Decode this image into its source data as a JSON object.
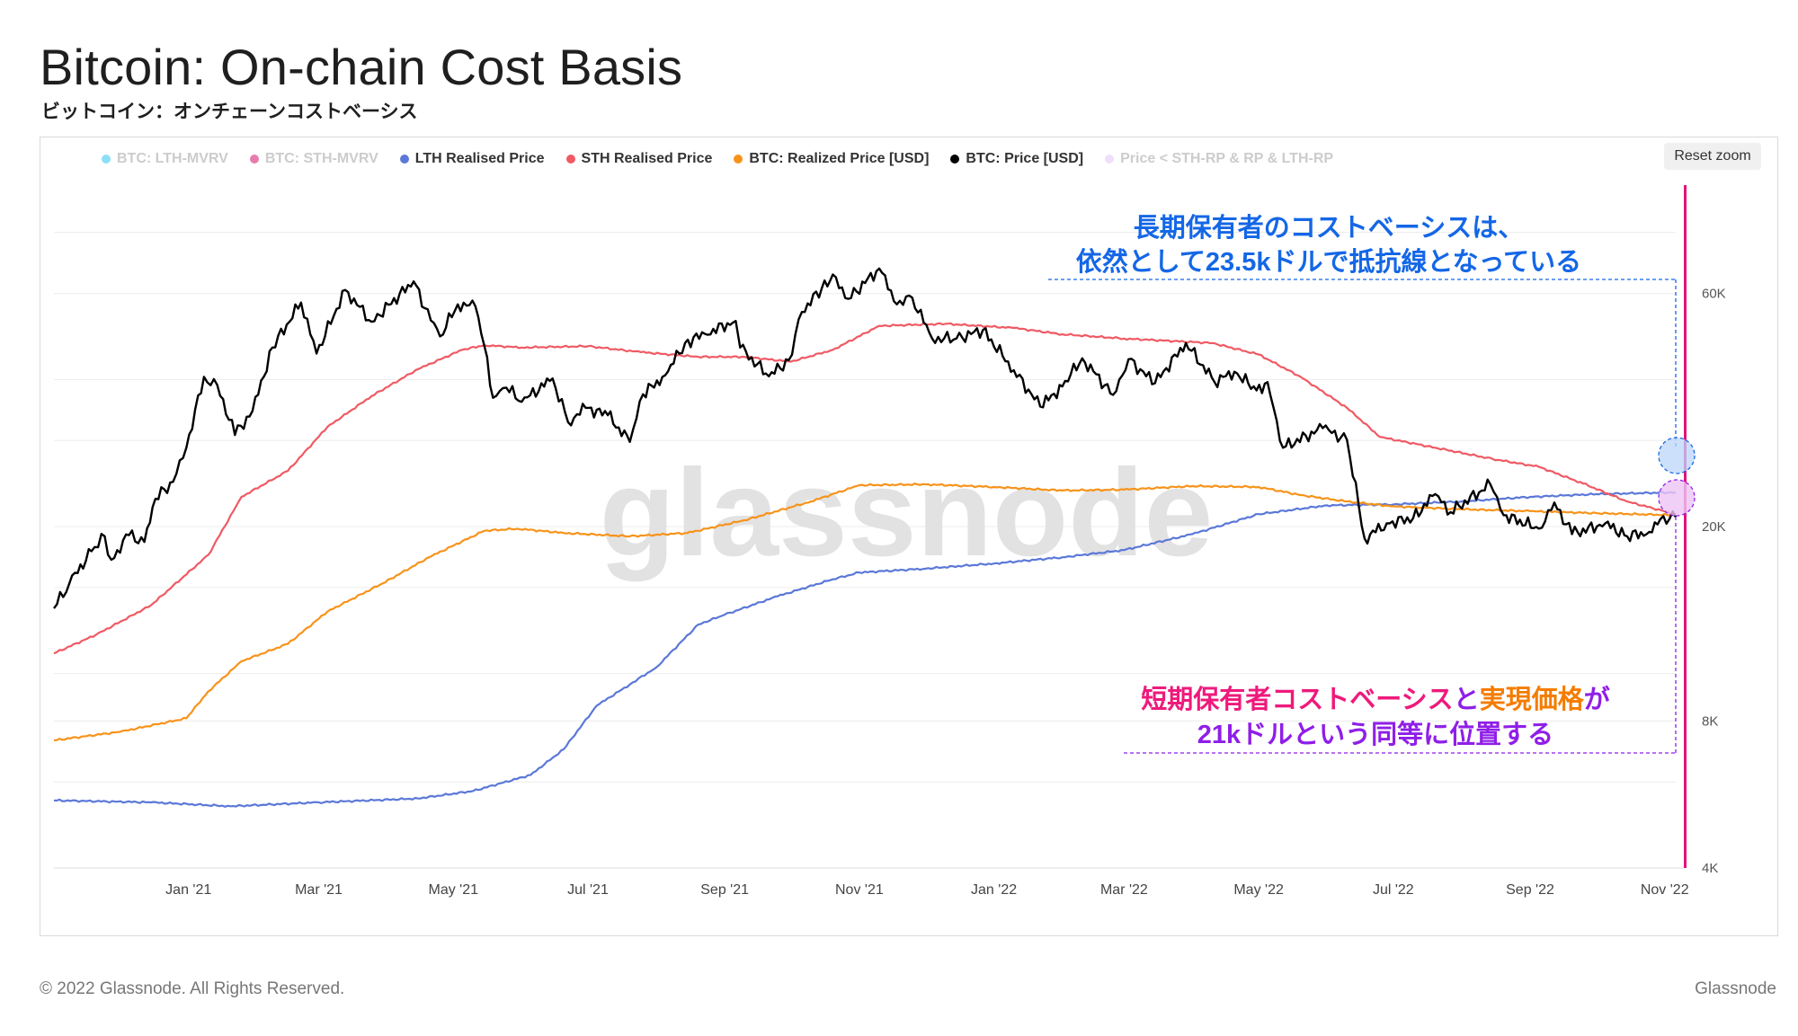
{
  "header": {
    "title": "Bitcoin: On-chain Cost Basis",
    "subtitle": "ビットコイン：オンチェーンコストベーシス"
  },
  "legend": {
    "items": [
      {
        "label": "BTC: LTH-MVRV",
        "color": "#2ec4f2",
        "active": false
      },
      {
        "label": "BTC: STH-MVRV",
        "color": "#d6116a",
        "active": false
      },
      {
        "label": "LTH Realised Price",
        "color": "#5b78d8",
        "active": true
      },
      {
        "label": "STH Realised Price",
        "color": "#ef5a64",
        "active": true
      },
      {
        "label": "BTC: Realized Price [USD]",
        "color": "#f7931a",
        "active": true
      },
      {
        "label": "BTC: Price [USD]",
        "color": "#000000",
        "active": true
      },
      {
        "label": "Price < STH-RP & RP & LTH-RP",
        "color": "#e3c4f7",
        "active": false
      }
    ]
  },
  "toolbar": {
    "reset_label": "Reset zoom"
  },
  "watermark": "glassnode",
  "annotations": {
    "top_line1": "長期保有者のコストベーシスは、",
    "top_line2": "依然として23.5kドルで抵抗線となっている",
    "bottom_line1_a": "短期保有者コストベーシス",
    "bottom_line1_b": "と",
    "bottom_line1_c": "実現価格",
    "bottom_line1_d": "が",
    "bottom_line2": "21kドルという同等に位置する",
    "colors": {
      "top": "#1467e6",
      "pink": "#ee1a7c",
      "orange": "#f57c00",
      "purple": "#8f1ee8"
    }
  },
  "footer": {
    "copyright": "© 2022 Glassnode. All Rights Reserved.",
    "brand": "Glassnode"
  },
  "chart_data": {
    "type": "line",
    "xlabel": "",
    "ylabel": "",
    "y_scale": "log",
    "ylim": [
      4000,
      100000
    ],
    "y_ticks": [
      {
        "value": 4000,
        "label": "4K"
      },
      {
        "value": 8000,
        "label": "8K"
      },
      {
        "value": 20000,
        "label": "20K"
      },
      {
        "value": 60000,
        "label": "60K"
      }
    ],
    "x_range": [
      "2020-11-01",
      "2022-11-06"
    ],
    "x_ticks": [
      {
        "date": "2021-01-01",
        "label": "Jan '21"
      },
      {
        "date": "2021-03-01",
        "label": "Mar '21"
      },
      {
        "date": "2021-05-01",
        "label": "May '21"
      },
      {
        "date": "2021-07-01",
        "label": "Jul '21"
      },
      {
        "date": "2021-09-01",
        "label": "Sep '21"
      },
      {
        "date": "2021-11-01",
        "label": "Nov '21"
      },
      {
        "date": "2022-01-01",
        "label": "Jan '22"
      },
      {
        "date": "2022-03-01",
        "label": "Mar '22"
      },
      {
        "date": "2022-05-01",
        "label": "May '22"
      },
      {
        "date": "2022-07-01",
        "label": "Jul '22"
      },
      {
        "date": "2022-09-01",
        "label": "Sep '22"
      },
      {
        "date": "2022-11-01",
        "label": "Nov '22"
      }
    ],
    "series": [
      {
        "name": "LTH Realised Price",
        "color": "#5b78d8",
        "width": 2.2,
        "points": [
          [
            "2020-11-01",
            5500
          ],
          [
            "2020-12-15",
            5450
          ],
          [
            "2021-01-20",
            5350
          ],
          [
            "2021-03-01",
            5450
          ],
          [
            "2021-04-15",
            5550
          ],
          [
            "2021-05-10",
            5750
          ],
          [
            "2021-06-05",
            6200
          ],
          [
            "2021-06-20",
            7000
          ],
          [
            "2021-07-05",
            8600
          ],
          [
            "2021-07-20",
            9500
          ],
          [
            "2021-08-01",
            10300
          ],
          [
            "2021-08-20",
            12600
          ],
          [
            "2021-09-01",
            13200
          ],
          [
            "2021-09-25",
            14400
          ],
          [
            "2021-10-20",
            15600
          ],
          [
            "2021-11-01",
            16100
          ],
          [
            "2021-12-01",
            16400
          ],
          [
            "2022-01-01",
            16800
          ],
          [
            "2022-02-01",
            17300
          ],
          [
            "2022-03-01",
            17900
          ],
          [
            "2022-04-01",
            19300
          ],
          [
            "2022-05-01",
            21200
          ],
          [
            "2022-06-01",
            22100
          ],
          [
            "2022-07-01",
            22200
          ],
          [
            "2022-08-01",
            22500
          ],
          [
            "2022-09-01",
            23000
          ],
          [
            "2022-10-01",
            23300
          ],
          [
            "2022-11-06",
            23500
          ]
        ]
      },
      {
        "name": "STH Realised Price",
        "color": "#ef5a64",
        "width": 2.2,
        "points": [
          [
            "2020-11-01",
            11000
          ],
          [
            "2020-11-20",
            12000
          ],
          [
            "2020-12-15",
            13800
          ],
          [
            "2021-01-10",
            17500
          ],
          [
            "2021-01-25",
            23000
          ],
          [
            "2021-02-15",
            26000
          ],
          [
            "2021-03-05",
            32000
          ],
          [
            "2021-03-25",
            37000
          ],
          [
            "2021-04-15",
            42000
          ],
          [
            "2021-05-05",
            46000
          ],
          [
            "2021-05-15",
            47000
          ],
          [
            "2021-06-01",
            46500
          ],
          [
            "2021-07-01",
            46800
          ],
          [
            "2021-07-25",
            45500
          ],
          [
            "2021-08-20",
            44500
          ],
          [
            "2021-09-10",
            44500
          ],
          [
            "2021-10-01",
            43500
          ],
          [
            "2021-10-20",
            46000
          ],
          [
            "2021-11-10",
            51500
          ],
          [
            "2021-12-10",
            52000
          ],
          [
            "2022-01-10",
            51000
          ],
          [
            "2022-02-01",
            49500
          ],
          [
            "2022-03-01",
            48500
          ],
          [
            "2022-04-10",
            47500
          ],
          [
            "2022-05-01",
            45000
          ],
          [
            "2022-05-20",
            40500
          ],
          [
            "2022-06-10",
            35000
          ],
          [
            "2022-06-25",
            30500
          ],
          [
            "2022-07-20",
            29000
          ],
          [
            "2022-08-15",
            27500
          ],
          [
            "2022-09-05",
            26500
          ],
          [
            "2022-09-25",
            24500
          ],
          [
            "2022-10-15",
            22500
          ],
          [
            "2022-11-06",
            21200
          ]
        ]
      },
      {
        "name": "BTC: Realized Price [USD]",
        "color": "#f7931a",
        "width": 2.2,
        "points": [
          [
            "2020-11-01",
            7300
          ],
          [
            "2020-12-01",
            7600
          ],
          [
            "2020-12-31",
            8100
          ],
          [
            "2021-01-10",
            9200
          ],
          [
            "2021-01-25",
            10600
          ],
          [
            "2021-02-15",
            11500
          ],
          [
            "2021-03-05",
            13400
          ],
          [
            "2021-03-30",
            15300
          ],
          [
            "2021-04-20",
            17300
          ],
          [
            "2021-05-15",
            19600
          ],
          [
            "2021-05-30",
            19800
          ],
          [
            "2021-06-20",
            19400
          ],
          [
            "2021-07-20",
            19100
          ],
          [
            "2021-08-15",
            19400
          ],
          [
            "2021-09-10",
            20600
          ],
          [
            "2021-10-10",
            22500
          ],
          [
            "2021-11-01",
            24300
          ],
          [
            "2021-12-01",
            24400
          ],
          [
            "2022-01-01",
            24100
          ],
          [
            "2022-02-01",
            23700
          ],
          [
            "2022-03-01",
            23800
          ],
          [
            "2022-04-01",
            24200
          ],
          [
            "2022-05-01",
            24100
          ],
          [
            "2022-05-20",
            23200
          ],
          [
            "2022-06-10",
            22500
          ],
          [
            "2022-07-01",
            22000
          ],
          [
            "2022-08-01",
            21700
          ],
          [
            "2022-09-01",
            21500
          ],
          [
            "2022-10-01",
            21300
          ],
          [
            "2022-11-06",
            21100
          ]
        ]
      },
      {
        "name": "BTC: Price [USD]",
        "color": "#000000",
        "width": 2.4,
        "points": [
          [
            "2020-11-01",
            13600
          ],
          [
            "2020-11-08",
            15300
          ],
          [
            "2020-11-18",
            17800
          ],
          [
            "2020-11-24",
            19100
          ],
          [
            "2020-11-27",
            17100
          ],
          [
            "2020-12-05",
            19200
          ],
          [
            "2020-12-12",
            18600
          ],
          [
            "2020-12-17",
            22800
          ],
          [
            "2020-12-25",
            24700
          ],
          [
            "2020-12-31",
            29000
          ],
          [
            "2021-01-08",
            40500
          ],
          [
            "2021-01-14",
            39000
          ],
          [
            "2021-01-22",
            30800
          ],
          [
            "2021-01-30",
            34500
          ],
          [
            "2021-02-08",
            46500
          ],
          [
            "2021-02-21",
            57500
          ],
          [
            "2021-02-28",
            45200
          ],
          [
            "2021-03-13",
            61000
          ],
          [
            "2021-03-25",
            52500
          ],
          [
            "2021-04-13",
            63500
          ],
          [
            "2021-04-18",
            56000
          ],
          [
            "2021-04-25",
            49000
          ],
          [
            "2021-05-03",
            57000
          ],
          [
            "2021-05-11",
            56500
          ],
          [
            "2021-05-15",
            47000
          ],
          [
            "2021-05-19",
            36700
          ],
          [
            "2021-05-25",
            38500
          ],
          [
            "2021-06-01",
            36000
          ],
          [
            "2021-06-15",
            40200
          ],
          [
            "2021-06-22",
            32700
          ],
          [
            "2021-06-30",
            35000
          ],
          [
            "2021-07-10",
            33800
          ],
          [
            "2021-07-20",
            29800
          ],
          [
            "2021-07-26",
            37300
          ],
          [
            "2021-08-05",
            40800
          ],
          [
            "2021-08-14",
            47500
          ],
          [
            "2021-08-23",
            49600
          ],
          [
            "2021-09-06",
            52700
          ],
          [
            "2021-09-08",
            46500
          ],
          [
            "2021-09-21",
            40600
          ],
          [
            "2021-09-30",
            43800
          ],
          [
            "2021-10-06",
            55000
          ],
          [
            "2021-10-15",
            61500
          ],
          [
            "2021-10-20",
            65600
          ],
          [
            "2021-10-27",
            58500
          ],
          [
            "2021-11-10",
            67500
          ],
          [
            "2021-11-18",
            57000
          ],
          [
            "2021-11-25",
            58800
          ],
          [
            "2021-12-04",
            48500
          ],
          [
            "2021-12-15",
            48500
          ],
          [
            "2021-12-27",
            50500
          ],
          [
            "2022-01-10",
            41800
          ],
          [
            "2022-01-22",
            35200
          ],
          [
            "2022-02-01",
            38700
          ],
          [
            "2022-02-10",
            44200
          ],
          [
            "2022-02-24",
            37200
          ],
          [
            "2022-03-03",
            44000
          ],
          [
            "2022-03-15",
            39300
          ],
          [
            "2022-03-29",
            47500
          ],
          [
            "2022-04-11",
            39500
          ],
          [
            "2022-04-20",
            41500
          ],
          [
            "2022-04-30",
            38000
          ],
          [
            "2022-05-05",
            39500
          ],
          [
            "2022-05-12",
            29000
          ],
          [
            "2022-05-30",
            31800
          ],
          [
            "2022-06-10",
            30100
          ],
          [
            "2022-06-18",
            18900
          ],
          [
            "2022-06-28",
            20300
          ],
          [
            "2022-07-10",
            20800
          ],
          [
            "2022-07-20",
            23300
          ],
          [
            "2022-07-27",
            21400
          ],
          [
            "2022-08-14",
            24400
          ],
          [
            "2022-08-20",
            21100
          ],
          [
            "2022-09-05",
            19800
          ],
          [
            "2022-09-12",
            22400
          ],
          [
            "2022-09-20",
            19300
          ],
          [
            "2022-10-05",
            20300
          ],
          [
            "2022-10-15",
            19100
          ],
          [
            "2022-10-25",
            19500
          ],
          [
            "2022-10-30",
            20700
          ],
          [
            "2022-11-06",
            20900
          ]
        ]
      }
    ]
  }
}
